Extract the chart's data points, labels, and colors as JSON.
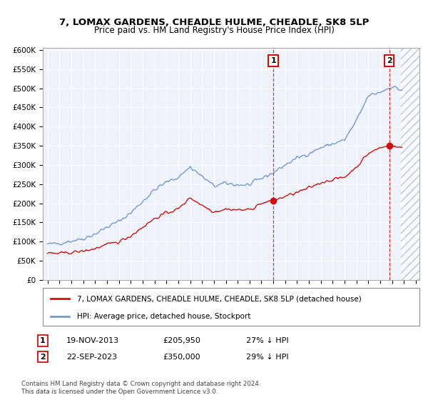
{
  "title": "7, LOMAX GARDENS, CHEADLE HULME, CHEADLE, SK8 5LP",
  "subtitle": "Price paid vs. HM Land Registry's House Price Index (HPI)",
  "ylim": [
    0,
    600000
  ],
  "yticks": [
    0,
    50000,
    100000,
    150000,
    200000,
    250000,
    300000,
    350000,
    400000,
    450000,
    500000,
    550000,
    600000
  ],
  "xticks": [
    1995,
    1996,
    1997,
    1998,
    1999,
    2000,
    2001,
    2002,
    2003,
    2004,
    2005,
    2006,
    2007,
    2008,
    2009,
    2010,
    2011,
    2012,
    2013,
    2014,
    2015,
    2016,
    2017,
    2018,
    2019,
    2020,
    2021,
    2022,
    2023,
    2024,
    2025,
    2026
  ],
  "hpi_color": "#7799cc",
  "price_color": "#cc1111",
  "marker1_x": 2014.0,
  "marker1_price": 205950,
  "marker2_x": 2023.75,
  "marker2_price": 350000,
  "legend_line1": "7, LOMAX GARDENS, CHEADLE HULME, CHEADLE, SK8 5LP (detached house)",
  "legend_line2": "HPI: Average price, detached house, Stockport",
  "table_row1": [
    "1",
    "19-NOV-2013",
    "£205,950",
    "27% ↓ HPI"
  ],
  "table_row2": [
    "2",
    "22-SEP-2023",
    "£350,000",
    "29% ↓ HPI"
  ],
  "footer": "Contains HM Land Registry data © Crown copyright and database right 2024.\nThis data is licensed under the Open Government Licence v3.0.",
  "future_start": 2024.75,
  "future_color": "#dde8f8",
  "plot_bg": "#eef3fb"
}
